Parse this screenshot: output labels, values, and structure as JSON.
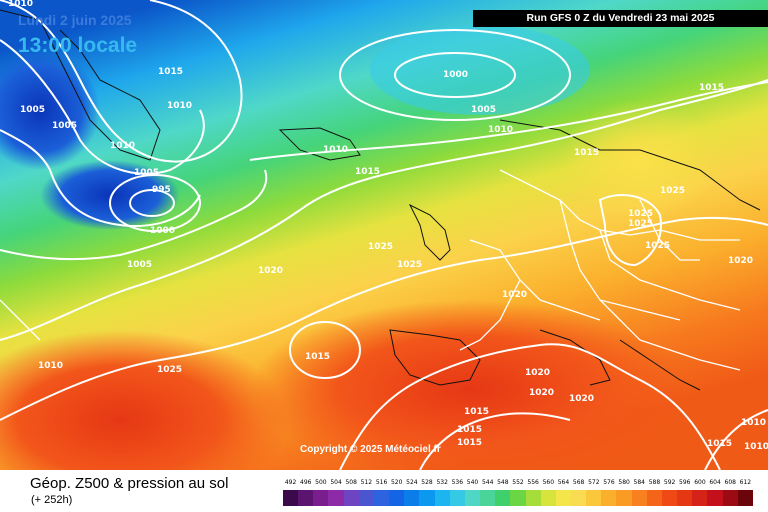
{
  "header": {
    "date": "Lundi 2 juin 2025",
    "time": "13:00 locale",
    "run": "Run GFS 0 Z du Vendredi 23 mai 2025"
  },
  "map": {
    "copyright": "Copyright © 2025 Météociel.fr",
    "isobar_labels": [
      "1010",
      "1015",
      "1010",
      "1005",
      "1005",
      "1010",
      "1005",
      "995",
      "1000",
      "1005",
      "1000",
      "1005",
      "1010",
      "1010",
      "1015",
      "1015",
      "1025",
      "1025",
      "1020",
      "1015",
      "1025",
      "1020",
      "1025",
      "1025",
      "1025",
      "1025",
      "1020",
      "1010",
      "1020",
      "1020",
      "1020",
      "1015",
      "1015",
      "1015",
      "1015",
      "1010",
      "1015",
      "1010"
    ]
  },
  "legend": {
    "title": "Géop. Z500 & pression au sol",
    "subtitle": "(+ 252h)",
    "values": [
      "492",
      "496",
      "500",
      "504",
      "508",
      "512",
      "516",
      "520",
      "524",
      "528",
      "532",
      "536",
      "540",
      "544",
      "548",
      "552",
      "556",
      "560",
      "564",
      "568",
      "572",
      "576",
      "580",
      "584",
      "588",
      "592",
      "596",
      "600",
      "604",
      "608",
      "612"
    ],
    "colors": [
      "#3b0a4a",
      "#5b1470",
      "#7a1e8e",
      "#8d2aa8",
      "#6f44c3",
      "#4a55d0",
      "#2d63df",
      "#1464e6",
      "#0a7de9",
      "#0b98ee",
      "#1db5f0",
      "#36c9e6",
      "#4fd6c4",
      "#4ad49a",
      "#3ed06a",
      "#6ad644",
      "#a6dd3a",
      "#d7e43c",
      "#f4e64a",
      "#f9dc52",
      "#fbc83b",
      "#fbb02d",
      "#fa9c24",
      "#f8801e",
      "#f46519",
      "#ef4a16",
      "#e63715",
      "#d62318",
      "#c4101a",
      "#9c0a13",
      "#6b050b"
    ]
  }
}
